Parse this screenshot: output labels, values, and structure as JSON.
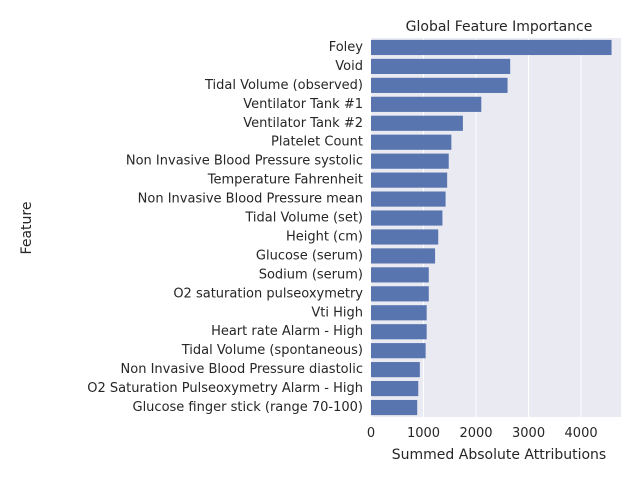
{
  "chart_data": {
    "type": "bar",
    "orientation": "horizontal",
    "title": "Global Feature Importance",
    "xlabel": "Summed Absolute Attributions",
    "ylabel": "Feature",
    "xlim": [
      0,
      4760
    ],
    "xticks": [
      0,
      1000,
      2000,
      3000,
      4000
    ],
    "xtick_labels": [
      "0",
      "1000",
      "2000",
      "3000",
      "4000"
    ],
    "grid": true,
    "bar_color": "#5875b0",
    "background_color": "#eaeaf2",
    "categories": [
      "Foley",
      "Void",
      "Tidal Volume (observed)",
      "Ventilator Tank #1",
      "Ventilator Tank #2",
      "Platelet Count",
      "Non Invasive Blood Pressure systolic",
      "Temperature Fahrenheit",
      "Non Invasive Blood Pressure mean",
      "Tidal Volume (set)",
      "Height (cm)",
      "Glucose (serum)",
      "Sodium (serum)",
      "O2 saturation pulseoxymetry",
      "Vti High",
      "Heart rate Alarm - High",
      "Tidal Volume (spontaneous)",
      "Non Invasive Blood Pressure diastolic",
      "O2 Saturation Pulseoxymetry Alarm - High",
      "Glucose finger stick (range 70-100)"
    ],
    "values": [
      4580,
      2650,
      2600,
      2100,
      1750,
      1530,
      1480,
      1450,
      1420,
      1360,
      1280,
      1220,
      1100,
      1100,
      1060,
      1060,
      1040,
      930,
      900,
      880
    ]
  }
}
